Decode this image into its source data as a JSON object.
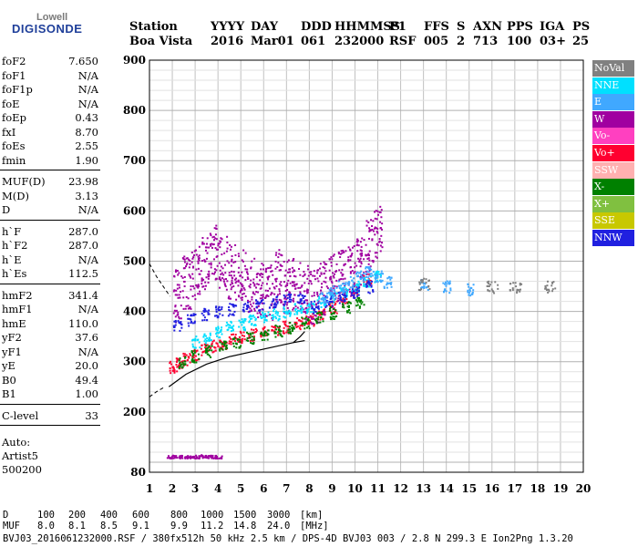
{
  "logo": {
    "top": "Lowell",
    "bottom": "DIGISONDE"
  },
  "header": {
    "row1": [
      "Station",
      "YYYY",
      "DAY",
      "DDD",
      "HHMMSS",
      "P1",
      "FFS",
      "S",
      "AXN",
      "PPS",
      "IGA",
      "PS"
    ],
    "row2": [
      "Boa Vista",
      "2016",
      "Mar01",
      "061",
      "232000",
      "RSF",
      "005",
      "2",
      "713",
      "100",
      "03+",
      "25"
    ]
  },
  "params": [
    {
      "group": [
        [
          "foF2",
          "7.650"
        ],
        [
          "foF1",
          "N/A"
        ],
        [
          "foF1p",
          "N/A"
        ],
        [
          "foE",
          "N/A"
        ],
        [
          "foEp",
          "0.43"
        ],
        [
          "fxI",
          "8.70"
        ],
        [
          "foEs",
          "2.55"
        ],
        [
          "fmin",
          "1.90"
        ]
      ]
    },
    {
      "group": [
        [
          "MUF(D)",
          "23.98"
        ],
        [
          "M(D)",
          "3.13"
        ],
        [
          "D",
          "N/A"
        ]
      ]
    },
    {
      "group": [
        [
          "h`F",
          "287.0"
        ],
        [
          "h`F2",
          "287.0"
        ],
        [
          "h`E",
          "N/A"
        ],
        [
          "h`Es",
          "112.5"
        ]
      ]
    },
    {
      "group": [
        [
          "hmF2",
          "341.4"
        ],
        [
          "hmF1",
          "N/A"
        ],
        [
          "hmE",
          "110.0"
        ],
        [
          "yF2",
          "37.6"
        ],
        [
          "yF1",
          "N/A"
        ],
        [
          "yE",
          "20.0"
        ],
        [
          "B0",
          "49.4"
        ],
        [
          "B1",
          "1.00"
        ]
      ]
    },
    {
      "group": [
        [
          "C-level",
          "33"
        ]
      ]
    }
  ],
  "auto": [
    "Auto:",
    "Artist5",
    "500200"
  ],
  "legend": [
    {
      "label": "NoVal",
      "color": "#808080"
    },
    {
      "label": "NNE",
      "color": "#00e0ff"
    },
    {
      "label": "E",
      "color": "#40a8ff"
    },
    {
      "label": "W",
      "color": "#a000a0"
    },
    {
      "label": "Vo-",
      "color": "#ff40c0"
    },
    {
      "label": "Vo+",
      "color": "#ff0030"
    },
    {
      "label": "SSW",
      "color": "#ffb0b0"
    },
    {
      "label": "X-",
      "color": "#008000"
    },
    {
      "label": "X+",
      "color": "#80c040"
    },
    {
      "label": "SSE",
      "color": "#c8c800"
    },
    {
      "label": "NNW",
      "color": "#2020e0"
    }
  ],
  "footer": {
    "d_label": "D",
    "d_values": [
      "100",
      "200",
      "400",
      "600",
      "800",
      "1000",
      "1500",
      "3000"
    ],
    "d_unit": "[km]",
    "muf_label": "MUF",
    "muf_values": [
      "8.0",
      "8.1",
      "8.5",
      "9.1",
      "9.9",
      "11.2",
      "14.8",
      "24.0"
    ],
    "muf_unit": "[MHz]",
    "file_line": "BVJ03_2016061232000.RSF / 380fx512h 50 kHz 2.5 km / DPS-4D BVJ03 003 / 2.8 N 299.3 E Ion2Png 1.3.20"
  },
  "chart_data": {
    "type": "scatter",
    "xlim": [
      1,
      20
    ],
    "ylim": [
      80,
      900
    ],
    "x_ticks": [
      1,
      2,
      3,
      4,
      5,
      6,
      7,
      8,
      9,
      10,
      11,
      12,
      13,
      14,
      15,
      16,
      17,
      18,
      19,
      20
    ],
    "y_ticks": [
      80,
      200,
      300,
      400,
      500,
      600,
      700,
      800,
      900
    ],
    "grid": true,
    "legend_position": "right",
    "profile_line": {
      "x": [
        1.85,
        2.6,
        3.5,
        4.5,
        5.5,
        6.5,
        7.3,
        7.8
      ],
      "y": [
        250,
        275,
        295,
        310,
        320,
        330,
        338,
        342
      ]
    },
    "profile_upper": {
      "x": [
        7.3,
        7.6,
        7.8
      ],
      "y": [
        338,
        350,
        360
      ]
    },
    "dashed_line_upper": {
      "x": [
        1.0,
        1.3,
        1.6,
        1.9
      ],
      "y": [
        495,
        470,
        450,
        430
      ]
    },
    "dashed_line_lower": {
      "x": [
        1.0,
        1.3,
        1.6
      ],
      "y": [
        230,
        240,
        248
      ]
    },
    "series": [
      {
        "name": "Vo+",
        "color_key": 5,
        "x": [
          2.0,
          2.3,
          2.6,
          3.0,
          3.4,
          3.8,
          4.2,
          4.6,
          5.0,
          5.5,
          6.0,
          6.5,
          7.0,
          7.5,
          8.0,
          8.5,
          9.0,
          9.5,
          10.0,
          10.5
        ],
        "y": [
          290,
          298,
          306,
          315,
          325,
          332,
          338,
          345,
          350,
          355,
          360,
          365,
          370,
          378,
          385,
          395,
          410,
          430,
          445,
          465
        ]
      },
      {
        "name": "W",
        "color_key": 3,
        "x": [
          2.2,
          2.6,
          3.0,
          3.4,
          3.8,
          4.2,
          4.6,
          5.0,
          5.4,
          5.8,
          6.2,
          6.6,
          7.0,
          7.4,
          7.8,
          8.2,
          8.6,
          9.0,
          9.4,
          9.8,
          10.2,
          10.6,
          11.0
        ],
        "y": [
          430,
          460,
          480,
          500,
          520,
          500,
          480,
          470,
          455,
          445,
          440,
          470,
          450,
          460,
          440,
          430,
          445,
          460,
          470,
          480,
          500,
          530,
          560
        ]
      },
      {
        "name": "NNE",
        "color_key": 1,
        "x": [
          3.0,
          3.5,
          4.0,
          4.5,
          5.0,
          5.5,
          6.0,
          6.5,
          7.0,
          7.5,
          8.0,
          8.5,
          9.0,
          9.5,
          10.0,
          10.5,
          11.0
        ],
        "y": [
          340,
          350,
          360,
          370,
          375,
          385,
          390,
          395,
          400,
          405,
          410,
          420,
          430,
          440,
          450,
          460,
          470
        ]
      },
      {
        "name": "NNW",
        "color_key": 10,
        "x": [
          2.2,
          2.8,
          3.4,
          4.0,
          4.6,
          5.2,
          5.8,
          6.4,
          7.0,
          7.6,
          8.2,
          8.8,
          9.4,
          10.0,
          10.6
        ],
        "y": [
          375,
          385,
          395,
          400,
          405,
          410,
          415,
          420,
          425,
          430,
          410,
          420,
          430,
          440,
          450
        ]
      },
      {
        "name": "X-",
        "color_key": 7,
        "x": [
          2.4,
          3.0,
          3.6,
          4.2,
          4.8,
          5.4,
          6.0,
          6.6,
          7.2,
          7.8,
          8.4,
          9.0,
          9.6,
          10.2
        ],
        "y": [
          300,
          312,
          322,
          332,
          340,
          348,
          355,
          362,
          370,
          378,
          388,
          398,
          410,
          420
        ]
      },
      {
        "name": "E",
        "color_key": 2,
        "x": [
          8.6,
          9.0,
          9.4,
          9.8,
          10.2,
          10.6,
          11.0,
          11.4,
          13.0,
          14.0,
          15.0
        ],
        "y": [
          430,
          440,
          450,
          460,
          470,
          480,
          470,
          460,
          455,
          450,
          445
        ]
      },
      {
        "name": "Es",
        "color_key": 3,
        "x": [
          1.9,
          2.2,
          2.5,
          2.8,
          3.1,
          3.4,
          3.7,
          4.0
        ],
        "y": [
          112,
          112,
          112,
          112,
          112,
          113,
          112,
          112
        ]
      },
      {
        "name": "NoVal",
        "color_key": 0,
        "x": [
          13.0,
          16.0,
          17.0,
          18.5
        ],
        "y": [
          455,
          450,
          448,
          450
        ]
      }
    ]
  }
}
